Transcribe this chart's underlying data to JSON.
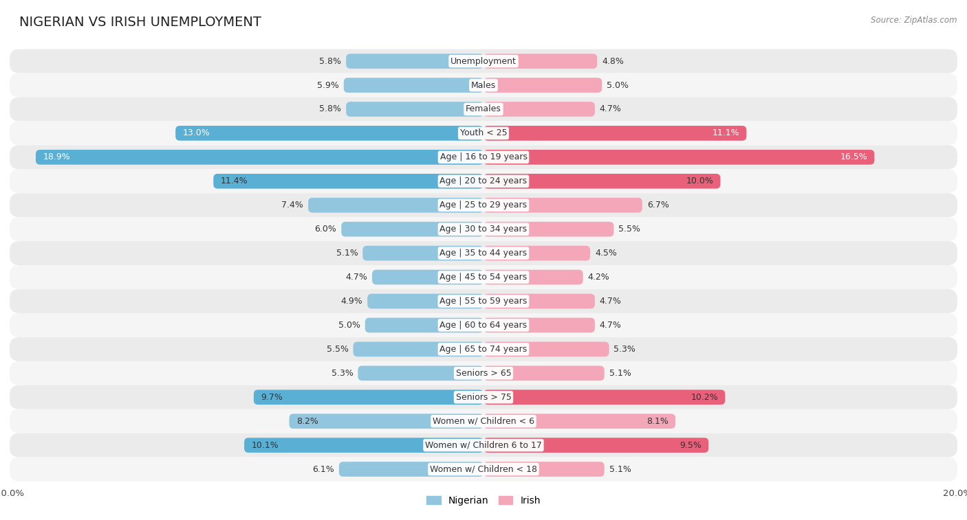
{
  "title": "NIGERIAN VS IRISH UNEMPLOYMENT",
  "source": "Source: ZipAtlas.com",
  "categories": [
    "Unemployment",
    "Males",
    "Females",
    "Youth < 25",
    "Age | 16 to 19 years",
    "Age | 20 to 24 years",
    "Age | 25 to 29 years",
    "Age | 30 to 34 years",
    "Age | 35 to 44 years",
    "Age | 45 to 54 years",
    "Age | 55 to 59 years",
    "Age | 60 to 64 years",
    "Age | 65 to 74 years",
    "Seniors > 65",
    "Seniors > 75",
    "Women w/ Children < 6",
    "Women w/ Children 6 to 17",
    "Women w/ Children < 18"
  ],
  "nigerian": [
    5.8,
    5.9,
    5.8,
    13.0,
    18.9,
    11.4,
    7.4,
    6.0,
    5.1,
    4.7,
    4.9,
    5.0,
    5.5,
    5.3,
    9.7,
    8.2,
    10.1,
    6.1
  ],
  "irish": [
    4.8,
    5.0,
    4.7,
    11.1,
    16.5,
    10.0,
    6.7,
    5.5,
    4.5,
    4.2,
    4.7,
    4.7,
    5.3,
    5.1,
    10.2,
    8.1,
    9.5,
    5.1
  ],
  "nigerian_color_normal": "#92c5de",
  "nigerian_color_highlight": "#5aafd4",
  "irish_color_normal": "#f4a7b9",
  "irish_color_highlight": "#e8607a",
  "row_bg_odd": "#ebebeb",
  "row_bg_even": "#f5f5f5",
  "max_val": 20.0,
  "bar_height": 0.62,
  "title_fontsize": 14,
  "value_fontsize": 9,
  "cat_fontsize": 9
}
